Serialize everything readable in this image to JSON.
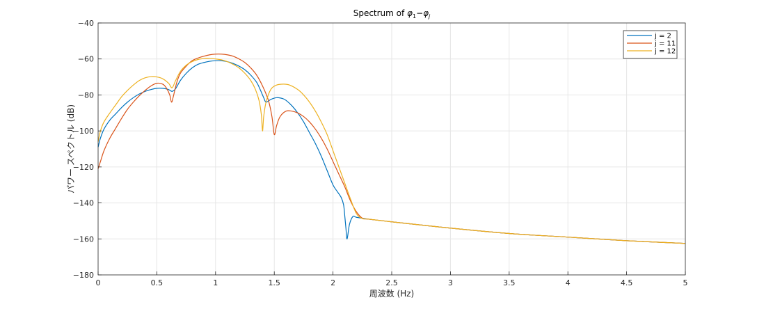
{
  "chart_data": {
    "type": "line",
    "title": "Spectrum of φ1−φj",
    "title_parts": {
      "prefix": "Spectrum of ",
      "phi": "φ",
      "sub_1": "1",
      "minus": "−",
      "sub_j": "j"
    },
    "xlabel": "周波数 (Hz)",
    "ylabel": "パワー スペクトル (dB)",
    "xlim": [
      0,
      5
    ],
    "ylim": [
      -180,
      -40
    ],
    "xticks": [
      "0",
      "0.5",
      "1",
      "1.5",
      "2",
      "2.5",
      "3",
      "3.5",
      "4",
      "4.5",
      "5"
    ],
    "yticks": [
      "-180",
      "-160",
      "-140",
      "-120",
      "-100",
      "-80",
      "-60",
      "-40"
    ],
    "grid": true,
    "legend_position": "top-right",
    "series": [
      {
        "name": "j = 2",
        "color": "#0072BD",
        "x": [
          0,
          0.02,
          0.05,
          0.1,
          0.15,
          0.2,
          0.25,
          0.3,
          0.35,
          0.4,
          0.45,
          0.5,
          0.55,
          0.6,
          0.63,
          0.66,
          0.7,
          0.75,
          0.8,
          0.85,
          0.9,
          0.95,
          1.0,
          1.05,
          1.1,
          1.15,
          1.2,
          1.25,
          1.3,
          1.35,
          1.38,
          1.41,
          1.43,
          1.47,
          1.52,
          1.57,
          1.6,
          1.65,
          1.7,
          1.75,
          1.8,
          1.85,
          1.9,
          1.95,
          2.0,
          2.04,
          2.07,
          2.09,
          2.1,
          2.11,
          2.12,
          2.14,
          2.17,
          2.2,
          2.3,
          2.5,
          3,
          3.5,
          4,
          4.5,
          5
        ],
        "y": [
          -109,
          -104,
          -99,
          -94,
          -90.5,
          -87,
          -84,
          -81.5,
          -79.5,
          -78,
          -77,
          -76.3,
          -76.3,
          -77,
          -78,
          -76.5,
          -72,
          -68,
          -65,
          -63,
          -62,
          -61.3,
          -61,
          -61,
          -61.5,
          -62.5,
          -64,
          -66,
          -69,
          -73,
          -77,
          -81.5,
          -84,
          -82.5,
          -81.5,
          -82,
          -83,
          -86,
          -90,
          -95,
          -101,
          -107,
          -114,
          -122,
          -130,
          -134,
          -137,
          -141,
          -147,
          -154,
          -160,
          -152,
          -147.5,
          -148,
          -149,
          -150.5,
          -154,
          -157,
          -159,
          -161,
          -162.5
        ]
      },
      {
        "name": "j = 11",
        "color": "#D95319",
        "x": [
          0,
          0.02,
          0.05,
          0.1,
          0.15,
          0.2,
          0.25,
          0.3,
          0.35,
          0.4,
          0.45,
          0.5,
          0.55,
          0.58,
          0.61,
          0.625,
          0.64,
          0.67,
          0.7,
          0.75,
          0.8,
          0.85,
          0.9,
          0.95,
          1.0,
          1.05,
          1.1,
          1.15,
          1.2,
          1.25,
          1.3,
          1.35,
          1.4,
          1.45,
          1.48,
          1.5,
          1.52,
          1.55,
          1.6,
          1.65,
          1.7,
          1.75,
          1.8,
          1.85,
          1.9,
          1.95,
          2.0,
          2.05,
          2.1,
          2.15,
          2.2,
          2.25,
          2.3,
          2.5,
          3,
          3.5,
          4,
          4.5,
          5
        ],
        "y": [
          -121,
          -117,
          -111,
          -104,
          -98.5,
          -93,
          -88,
          -84,
          -80.5,
          -77.5,
          -75,
          -73.5,
          -74,
          -76,
          -80,
          -84,
          -81,
          -73,
          -68,
          -64,
          -61,
          -59.5,
          -58.5,
          -57.7,
          -57.3,
          -57.3,
          -57.7,
          -58.5,
          -60,
          -62,
          -65,
          -69,
          -75,
          -83,
          -92,
          -102,
          -97,
          -92,
          -89,
          -89,
          -90,
          -92,
          -95,
          -99,
          -104,
          -110,
          -117,
          -124,
          -131,
          -139,
          -145,
          -148.5,
          -149,
          -150.5,
          -154,
          -157,
          -159,
          -161,
          -162.5
        ]
      },
      {
        "name": "j = 12",
        "color": "#EDB120",
        "x": [
          0,
          0.02,
          0.05,
          0.1,
          0.15,
          0.2,
          0.25,
          0.3,
          0.35,
          0.4,
          0.45,
          0.5,
          0.55,
          0.6,
          0.63,
          0.66,
          0.7,
          0.75,
          0.8,
          0.85,
          0.9,
          0.95,
          1.0,
          1.05,
          1.1,
          1.15,
          1.2,
          1.25,
          1.3,
          1.34,
          1.37,
          1.39,
          1.4,
          1.41,
          1.43,
          1.47,
          1.52,
          1.58,
          1.63,
          1.7,
          1.75,
          1.8,
          1.85,
          1.9,
          1.95,
          2.0,
          2.05,
          2.1,
          2.15,
          2.2,
          2.25,
          2.3,
          2.5,
          3,
          3.5,
          4,
          4.5,
          5
        ],
        "y": [
          -106,
          -100,
          -95,
          -90,
          -85.5,
          -81,
          -77.5,
          -74.5,
          -72,
          -70.5,
          -69.8,
          -70,
          -71,
          -73.5,
          -76,
          -72,
          -67,
          -63.5,
          -61.5,
          -60.3,
          -59.8,
          -59.7,
          -60,
          -60.5,
          -61.5,
          -63,
          -65,
          -68,
          -72,
          -77,
          -83,
          -91,
          -100,
          -92,
          -84,
          -77,
          -74.5,
          -74,
          -74.5,
          -77,
          -80,
          -84,
          -89,
          -95,
          -102,
          -111,
          -120,
          -129,
          -138,
          -146,
          -148.7,
          -149,
          -150.5,
          -154,
          -157,
          -159,
          -161,
          -162.5
        ]
      }
    ]
  }
}
